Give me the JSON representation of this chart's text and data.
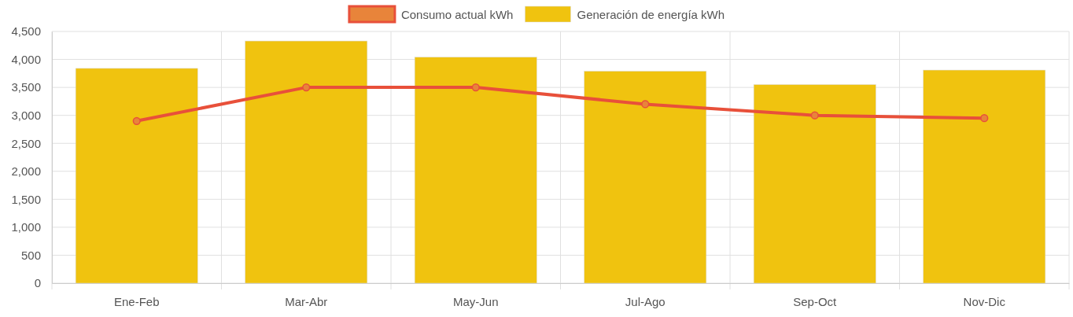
{
  "chart_data": {
    "type": "bar",
    "categories": [
      "Ene-Feb",
      "Mar-Abr",
      "May-Jun",
      "Jul-Ago",
      "Sep-Oct",
      "Nov-Dic"
    ],
    "series": [
      {
        "name": "Consumo actual kWh",
        "type": "line",
        "color": "#e8503a",
        "values": [
          2900,
          3500,
          3500,
          3200,
          3000,
          2950
        ]
      },
      {
        "name": "Generación de energía kWh",
        "color": "#f0c30f",
        "values": [
          3840,
          4330,
          4040,
          3790,
          3550,
          3810
        ]
      }
    ],
    "ylim": [
      0,
      4500
    ],
    "yticks": [
      {
        "value": 0,
        "label": "0"
      },
      {
        "value": 500,
        "label": "500"
      },
      {
        "value": 1000,
        "label": "1,000"
      },
      {
        "value": 1500,
        "label": "1,500"
      },
      {
        "value": 2000,
        "label": "2,000"
      },
      {
        "value": 2500,
        "label": "2,500"
      },
      {
        "value": 3000,
        "label": "3,000"
      },
      {
        "value": 3500,
        "label": "3,500"
      },
      {
        "value": 4000,
        "label": "4,000"
      },
      {
        "value": 4500,
        "label": "4,500"
      }
    ],
    "grid": true,
    "legend": "top",
    "marker": "circle",
    "line_style": "solid"
  }
}
